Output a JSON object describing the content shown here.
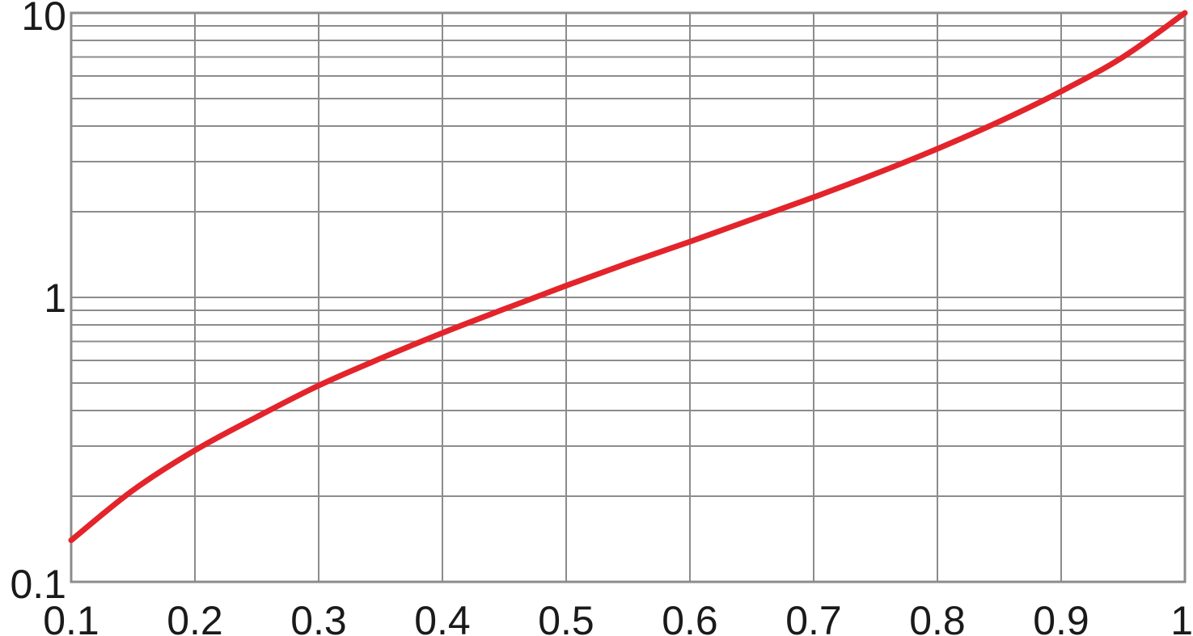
{
  "chart_data": {
    "type": "line",
    "title": "",
    "xlabel": "",
    "ylabel": "",
    "x_scale": "linear",
    "y_scale": "log",
    "xlim": [
      0.1,
      1
    ],
    "ylim": [
      0.1,
      10
    ],
    "grid": true,
    "x_ticks": [
      0.1,
      0.2,
      0.3,
      0.4,
      0.5,
      0.6,
      0.7,
      0.8,
      0.9,
      1
    ],
    "x_tick_labels": [
      "0.1",
      "0.2",
      "0.3",
      "0.4",
      "0.5",
      "0.6",
      "0.7",
      "0.8",
      "0.9",
      "1"
    ],
    "y_ticks": [
      0.1,
      1,
      10
    ],
    "y_tick_labels": [
      "0.1",
      "1",
      "10"
    ],
    "series": [
      {
        "color": "#e3242b",
        "x": [
          0.1,
          0.15,
          0.2,
          0.25,
          0.3,
          0.35,
          0.4,
          0.45,
          0.5,
          0.55,
          0.6,
          0.65,
          0.7,
          0.75,
          0.8,
          0.85,
          0.9,
          0.95,
          1.0
        ],
        "y": [
          0.14,
          0.21,
          0.29,
          0.38,
          0.49,
          0.61,
          0.75,
          0.91,
          1.1,
          1.32,
          1.57,
          1.88,
          2.25,
          2.72,
          3.33,
          4.15,
          5.3,
          7.0,
          10.0
        ]
      }
    ]
  }
}
